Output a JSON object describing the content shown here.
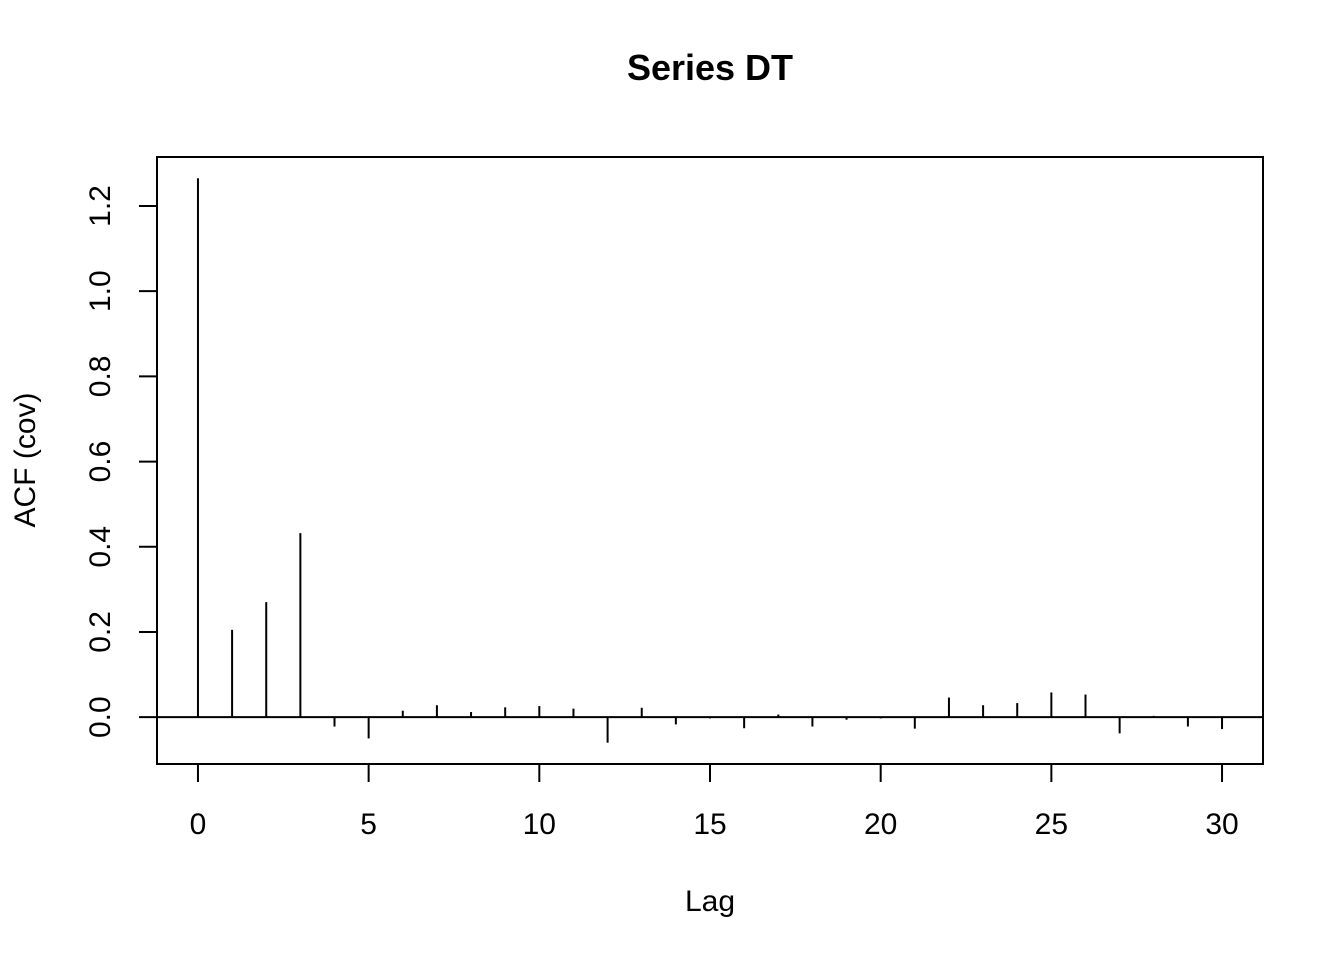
{
  "chart_data": {
    "type": "bar",
    "title": "Series  DT",
    "xlabel": "Lag",
    "ylabel": "ACF (cov)",
    "x": [
      0,
      1,
      2,
      3,
      4,
      5,
      6,
      7,
      8,
      9,
      10,
      11,
      12,
      13,
      14,
      15,
      16,
      17,
      18,
      19,
      20,
      21,
      22,
      23,
      24,
      25,
      26,
      27,
      28,
      29,
      30
    ],
    "values": [
      1.265,
      0.205,
      0.27,
      0.432,
      -0.022,
      -0.05,
      0.015,
      0.028,
      0.012,
      0.023,
      0.026,
      0.02,
      -0.06,
      0.022,
      -0.017,
      -0.003,
      -0.026,
      0.006,
      -0.022,
      -0.006,
      -0.003,
      -0.027,
      0.046,
      0.028,
      0.033,
      0.058,
      0.053,
      -0.038,
      0.003,
      -0.022,
      -0.028
    ],
    "x_ticks": [
      0,
      5,
      10,
      15,
      20,
      25,
      30
    ],
    "x_tick_labels": [
      "0",
      "5",
      "10",
      "15",
      "20",
      "25",
      "30"
    ],
    "y_ticks": [
      0.0,
      0.2,
      0.4,
      0.6,
      0.8,
      1.0,
      1.2
    ],
    "y_tick_labels": [
      "0.0",
      "0.2",
      "0.4",
      "0.6",
      "0.8",
      "1.0",
      "1.2"
    ],
    "xlim": [
      -1.2,
      31.2
    ],
    "ylim": [
      -0.11,
      1.315
    ],
    "grid": false,
    "zero_line": true,
    "colors": {
      "spike": "#000000",
      "axis": "#000000"
    }
  }
}
